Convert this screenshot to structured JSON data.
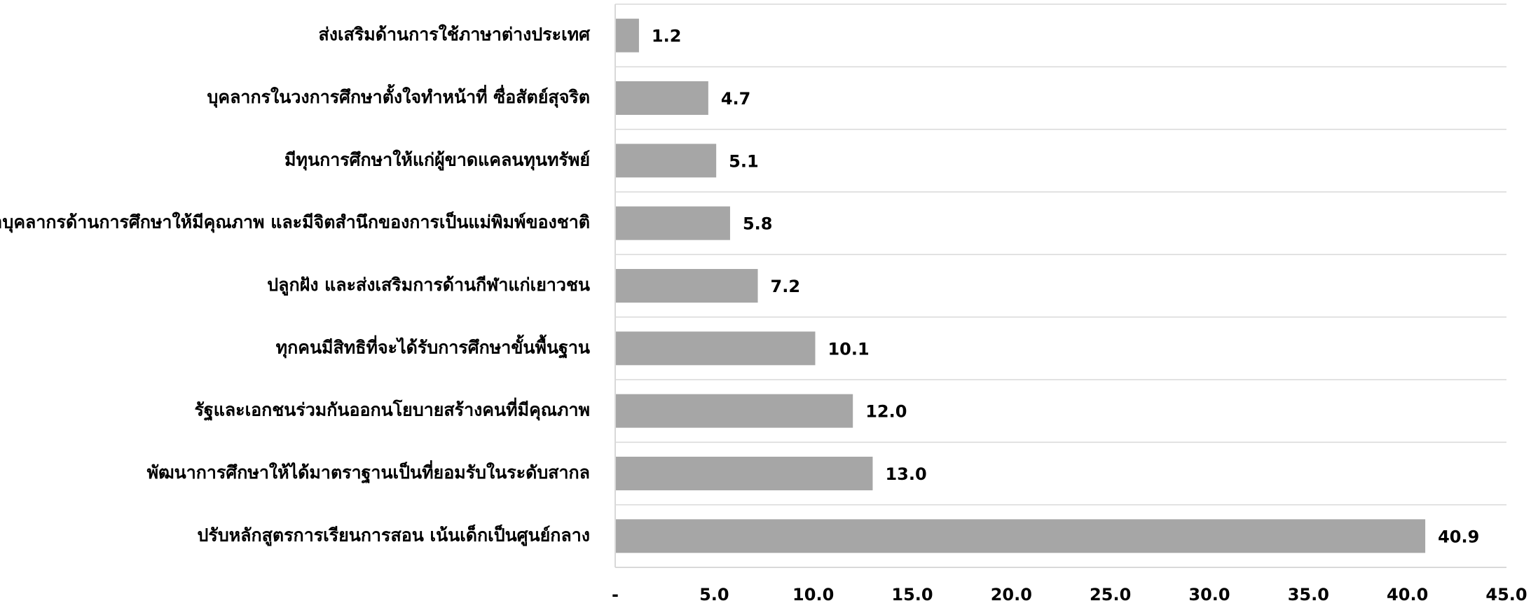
{
  "chart_data": {
    "type": "bar",
    "orientation": "horizontal",
    "categories": [
      "ส่งเสริมด้านการใช้ภาษาต่างประเทศ",
      "บุคลากรในวงการศึกษาตั้งใจทำหน้าที่ ซื่อสัตย์สุจริต",
      "มีทุนการศึกษาให้แก่ผู้ขาดแคลนทุนทรัพย์",
      "พัฒนาบุคลากรด้านการศึกษาให้มีคุณภาพ และมีจิตสำนึกของการเป็นแม่พิมพ์ของชาติ",
      "ปลูกฝัง และส่งเสริมการด้านกีฬาแก่เยาวชน",
      "ทุกคนมีสิทธิที่จะได้รับการศึกษาขั้นพื้นฐาน",
      "รัฐและเอกชนร่วมกันออกนโยบายสร้างคนที่มีคุณภาพ",
      "พัฒนาการศึกษาให้ได้มาตราฐานเป็นที่ยอมรับในระดับสากล",
      "ปรับหลักสูตรการเรียนการสอน เน้นเด็กเป็นศูนย์กลาง"
    ],
    "values": [
      1.2,
      4.7,
      5.1,
      5.8,
      7.2,
      10.1,
      12.0,
      13.0,
      40.9
    ],
    "value_labels": [
      "1.2",
      "4.7",
      "5.1",
      "5.8",
      "7.2",
      "10.1",
      "12.0",
      "13.0",
      "40.9"
    ],
    "highlight_index": 8,
    "x_ticks": [
      "-",
      "5.0",
      "10.0",
      "15.0",
      "20.0",
      "25.0",
      "30.0",
      "35.0",
      "40.0",
      "45.0"
    ],
    "xlim": [
      0,
      45
    ],
    "title": "",
    "xlabel": "",
    "ylabel": "",
    "grid": "horizontal separators between categories",
    "legend": "none",
    "colors": {
      "bar": "#a6a6a6",
      "highlight_label": "#ff0000",
      "label": "#000000",
      "grid": "#d9d9d9",
      "axis": "#d9d9d9"
    }
  }
}
